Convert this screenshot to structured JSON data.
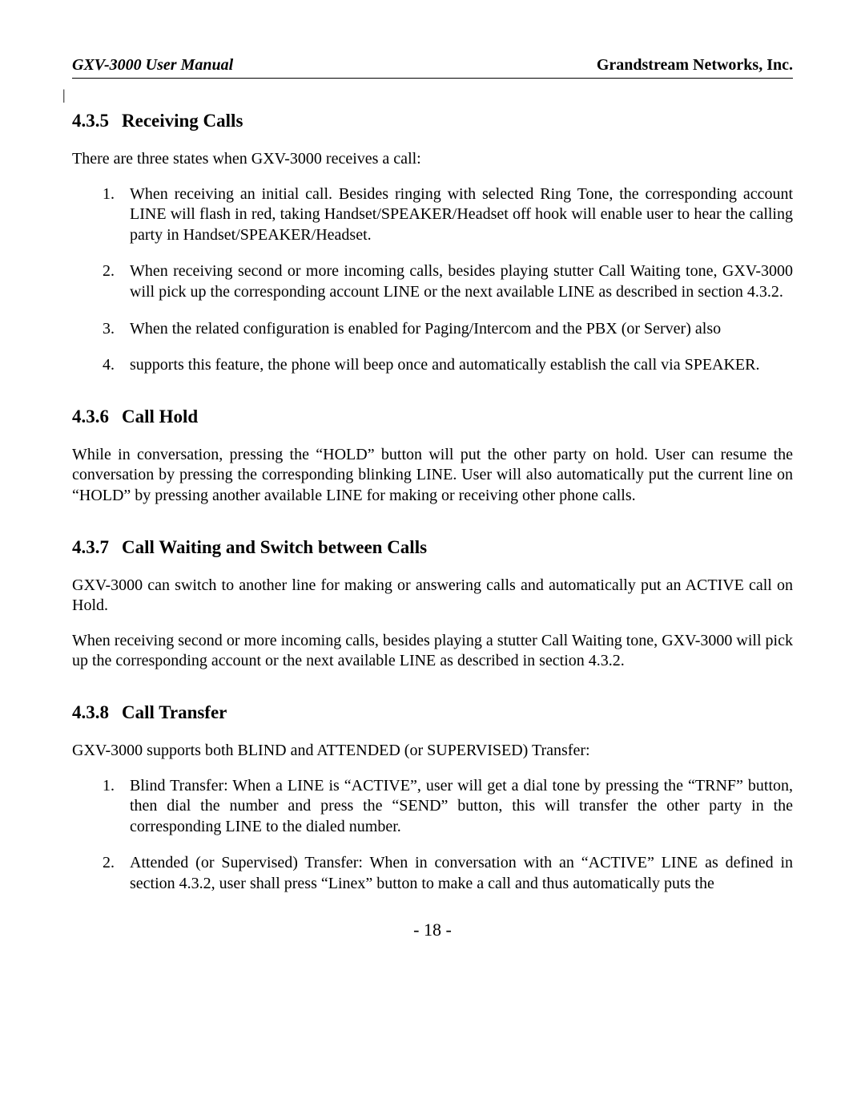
{
  "header": {
    "left": "GXV-3000 User Manual",
    "right": "Grandstream Networks, Inc."
  },
  "revision_mark": "|",
  "sections": {
    "s435": {
      "number": "4.3.5",
      "title": "Receiving Calls",
      "intro": "There are three states when GXV-3000 receives a call:",
      "items": [
        "When receiving an initial call. Besides ringing with selected Ring Tone, the corresponding account LINE will flash in red, taking Handset/SPEAKER/Headset off hook will enable user to hear the calling party in Handset/SPEAKER/Headset.",
        "When receiving second or more incoming calls, besides playing stutter Call Waiting tone, GXV-3000 will pick up the corresponding account LINE or the next available LINE as described in section 4.3.2.",
        "When the related configuration is enabled for Paging/Intercom and the PBX (or Server) also",
        "supports this feature, the phone will beep once and automatically establish the call via SPEAKER."
      ]
    },
    "s436": {
      "number": "4.3.6",
      "title": "Call Hold",
      "para": "While in conversation, pressing the “HOLD” button will put the other party on hold. User can resume the conversation by pressing the corresponding blinking LINE.  User will also automatically put the current line on “HOLD” by pressing another available LINE for making or receiving other phone calls."
    },
    "s437": {
      "number": "4.3.7",
      "title": "Call Waiting and Switch between Calls",
      "para1": "GXV-3000 can switch to another line for making or answering calls and automatically put an ACTIVE call on Hold.",
      "para2": "When receiving second or more incoming calls, besides playing a stutter Call Waiting tone, GXV-3000 will pick up the corresponding account or the next available LINE as described in section 4.3.2."
    },
    "s438": {
      "number": "4.3.8",
      "title": "Call Transfer",
      "intro": "GXV-3000 supports both BLIND and ATTENDED (or SUPERVISED) Transfer:",
      "items": [
        "Blind Transfer:   When a LINE is “ACTIVE”, user will get a dial tone by pressing the “TRNF” button, then dial the number and press the “SEND” button, this will transfer the other party in the corresponding LINE to the dialed number.",
        "Attended (or Supervised) Transfer:  When in conversation with an “ACTIVE” LINE as defined in section 4.3.2, user shall press “Linex” button to make a call and thus automatically puts the"
      ]
    }
  },
  "page_number": "- 18 -"
}
